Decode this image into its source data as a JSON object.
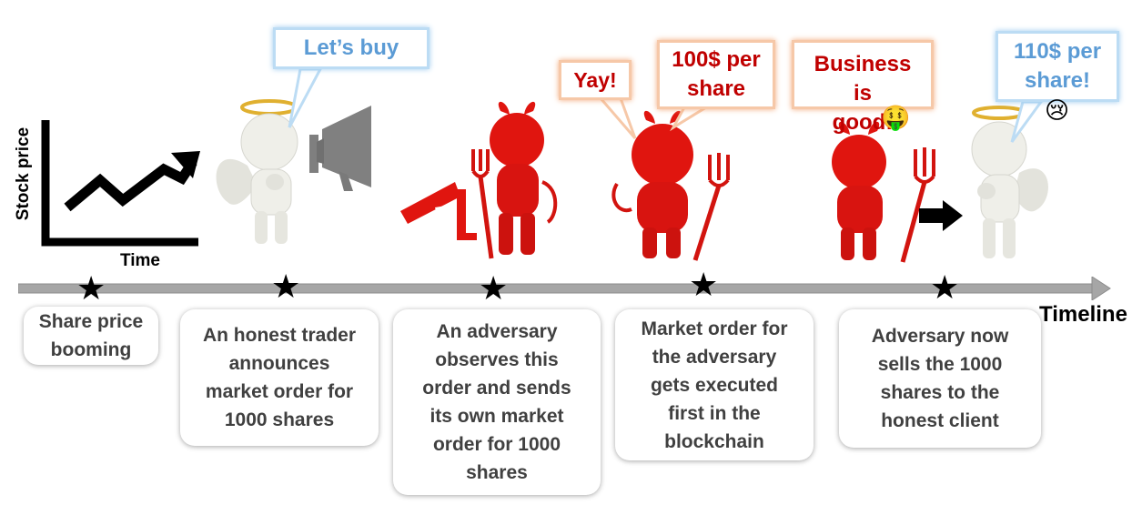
{
  "chart_icon": {
    "y_label": "Stock price",
    "x_label": "Time"
  },
  "timeline_label": "Timeline",
  "steps": [
    {
      "text": "Share price\nbooming"
    },
    {
      "text": "An honest trader\nannounces\nmarket order for\n1000 shares"
    },
    {
      "text": "An adversary\nobserves this\norder and sends\nits own market\norder for 1000\nshares"
    },
    {
      "text": "Market order for\nthe adversary\ngets executed\nfirst in the\nblockchain"
    },
    {
      "text": "Adversary now\nsells the 1000\nshares to the\nhonest client"
    }
  ],
  "bubbles": {
    "lets_buy": "Let’s buy",
    "yay": "Yay!",
    "price_100": "100$ per\nshare",
    "business": "Business\nis\ngood!",
    "price_110": "110$ per\nshare!"
  },
  "emoji": {
    "money_face": "🤑",
    "sad_face": "😢"
  },
  "colors": {
    "angel": "#efefe9",
    "devil": "#e0150f",
    "timeline": "#a6a6a6",
    "bubble_blue": "#5b9bd5",
    "bubble_red": "#c00000"
  }
}
